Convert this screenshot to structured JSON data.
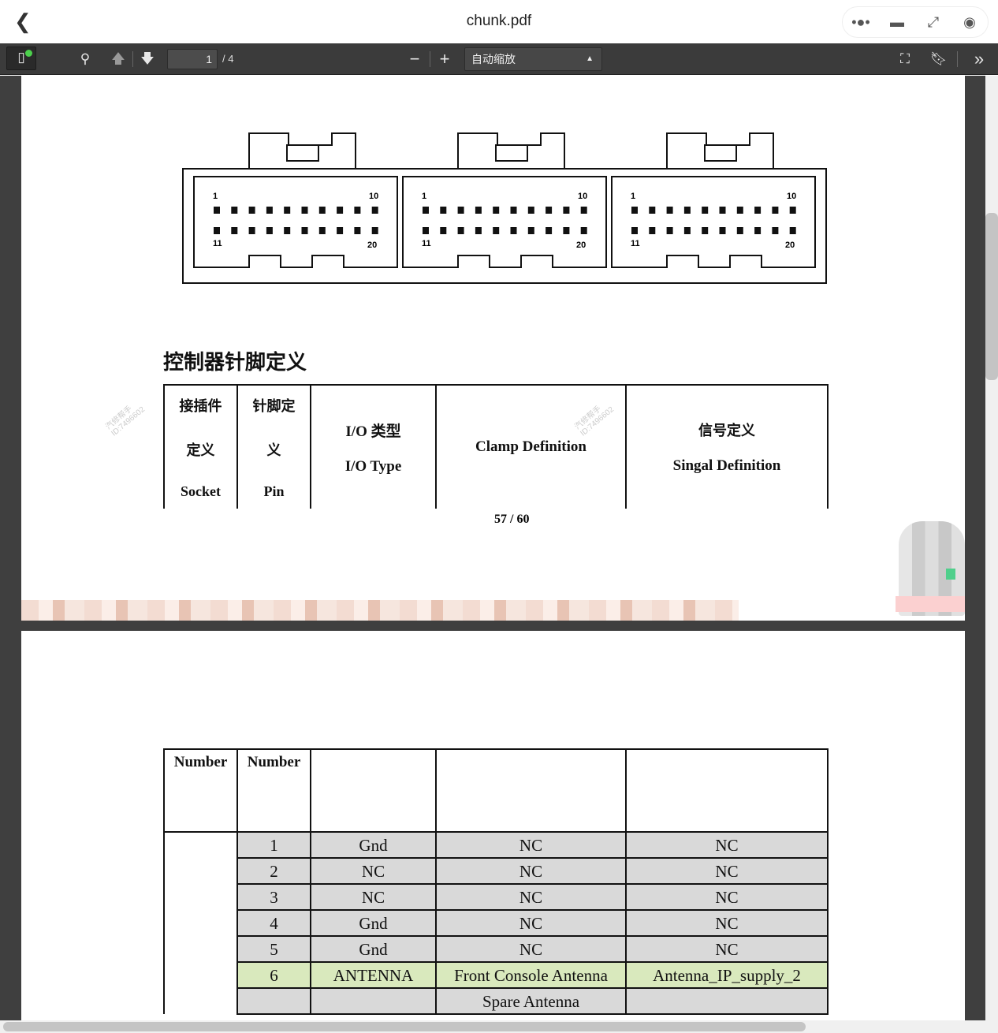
{
  "window": {
    "title": "chunk.pdf",
    "back_icon": "chevron-left-icon",
    "controls": [
      "more-icon",
      "minimize-icon",
      "restore-icon",
      "record-icon"
    ]
  },
  "toolbar": {
    "page_current": "1",
    "page_total": "/ 4",
    "zoom_out": "−",
    "zoom_in": "+",
    "zoom_select": "自动缩放"
  },
  "page1": {
    "diagram_labels": {
      "pin_first_top": "1",
      "pin_last_top": "10",
      "pin_first_bottom": "11",
      "pin_last_bottom": "20"
    },
    "heading": "控制器针脚定义",
    "table_header": [
      {
        "lines": [
          "接插件",
          "定义",
          "Socket"
        ]
      },
      {
        "lines": [
          "针脚定",
          "义",
          "Pin"
        ]
      },
      {
        "lines": [
          "I/O 类型",
          "I/O Type"
        ]
      },
      {
        "lines": [
          "Clamp Definition"
        ]
      },
      {
        "lines": [
          "信号定义",
          "Singal Definition"
        ]
      }
    ],
    "page_number": "57 / 60"
  },
  "page2": {
    "table_header": [
      "Number",
      "Number",
      "",
      "",
      ""
    ],
    "rows": [
      {
        "pin": "1",
        "io": "Gnd",
        "clamp": "NC",
        "signal": "NC",
        "highlight": "gray"
      },
      {
        "pin": "2",
        "io": "NC",
        "clamp": "NC",
        "signal": "NC",
        "highlight": "gray"
      },
      {
        "pin": "3",
        "io": "NC",
        "clamp": "NC",
        "signal": "NC",
        "highlight": "gray"
      },
      {
        "pin": "4",
        "io": "Gnd",
        "clamp": "NC",
        "signal": "NC",
        "highlight": "gray"
      },
      {
        "pin": "5",
        "io": "Gnd",
        "clamp": "NC",
        "signal": "NC",
        "highlight": "gray"
      },
      {
        "pin": "6",
        "io": "ANTENNA",
        "clamp": "Front Console Antenna",
        "signal": "Antenna_IP_supply_2",
        "highlight": "green"
      },
      {
        "pin": "",
        "io": "",
        "clamp": "Spare Antenna",
        "signal": "",
        "highlight": "gray"
      }
    ]
  },
  "colors": {
    "toolbar": "#3b3b3b",
    "viewer_bg": "#3f3f3f",
    "row_gray": "#d9d9d9",
    "row_green": "#d9e9bd",
    "status_dot": "#4cd04c"
  }
}
